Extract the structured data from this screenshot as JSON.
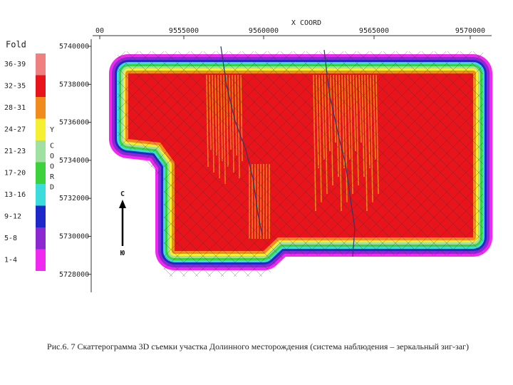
{
  "legend": {
    "title": "Fold",
    "items": [
      {
        "label": "36-39",
        "color": "#f08080"
      },
      {
        "label": "32-35",
        "color": "#e8141c"
      },
      {
        "label": "28-31",
        "color": "#f08c1e"
      },
      {
        "label": "24-27",
        "color": "#f5f032"
      },
      {
        "label": "21-23",
        "color": "#a0e0a0"
      },
      {
        "label": "17-20",
        "color": "#3cd23c"
      },
      {
        "label": "13-16",
        "color": "#3cdcdc"
      },
      {
        "label": "9-12",
        "color": "#1e28c8"
      },
      {
        "label": "5-8",
        "color": "#8c28d2"
      },
      {
        "label": "1-4",
        "color": "#f028f0"
      }
    ]
  },
  "x_axis": {
    "label": "X COORD",
    "ticks": [
      "00",
      "9555000",
      "9560000",
      "9565000",
      "9570000"
    ]
  },
  "y_axis": {
    "label_letters": [
      "Y",
      "C",
      "O",
      "O",
      "R",
      "D"
    ],
    "ticks": [
      "5740000",
      "5738000",
      "5736000",
      "5734000",
      "5732000",
      "5730000",
      "5728000"
    ]
  },
  "compass": {
    "north": "C",
    "south": "Ю"
  },
  "caption": "Рис.6. 7 Скаттерограмма 3D съемки участка Долинного месторождения (система наблюдения – зеркальный зиг-заг)"
}
